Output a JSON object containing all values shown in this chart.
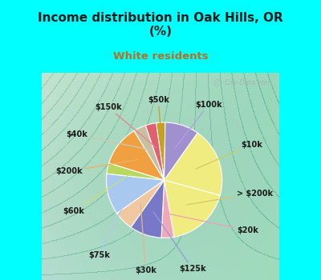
{
  "title": "Income distribution in Oak Hills, OR\n(%)",
  "subtitle": "White residents",
  "title_color": "#1a1a1a",
  "subtitle_color": "#b87020",
  "background_top": "#00ffff",
  "watermark": "City-Data.com",
  "labels": [
    "$50k",
    "$100k",
    "$10k",
    "> $200k",
    "$20k",
    "$125k",
    "$30k",
    "$75k",
    "$60k",
    "$200k",
    "$40k",
    "$150k"
  ],
  "values": [
    2.5,
    9.5,
    19.5,
    18.0,
    3.5,
    9.0,
    5.5,
    11.5,
    3.0,
    11.5,
    3.5,
    3.0
  ],
  "colors": [
    "#c8a020",
    "#a090d0",
    "#f0ec80",
    "#f0ec80",
    "#f0a8b8",
    "#7878c8",
    "#f0c8a0",
    "#a8c8f0",
    "#b8d860",
    "#f0a040",
    "#c8bfa0",
    "#e06070"
  ],
  "startangle": 98,
  "figsize": [
    4.0,
    3.5
  ],
  "dpi": 100
}
